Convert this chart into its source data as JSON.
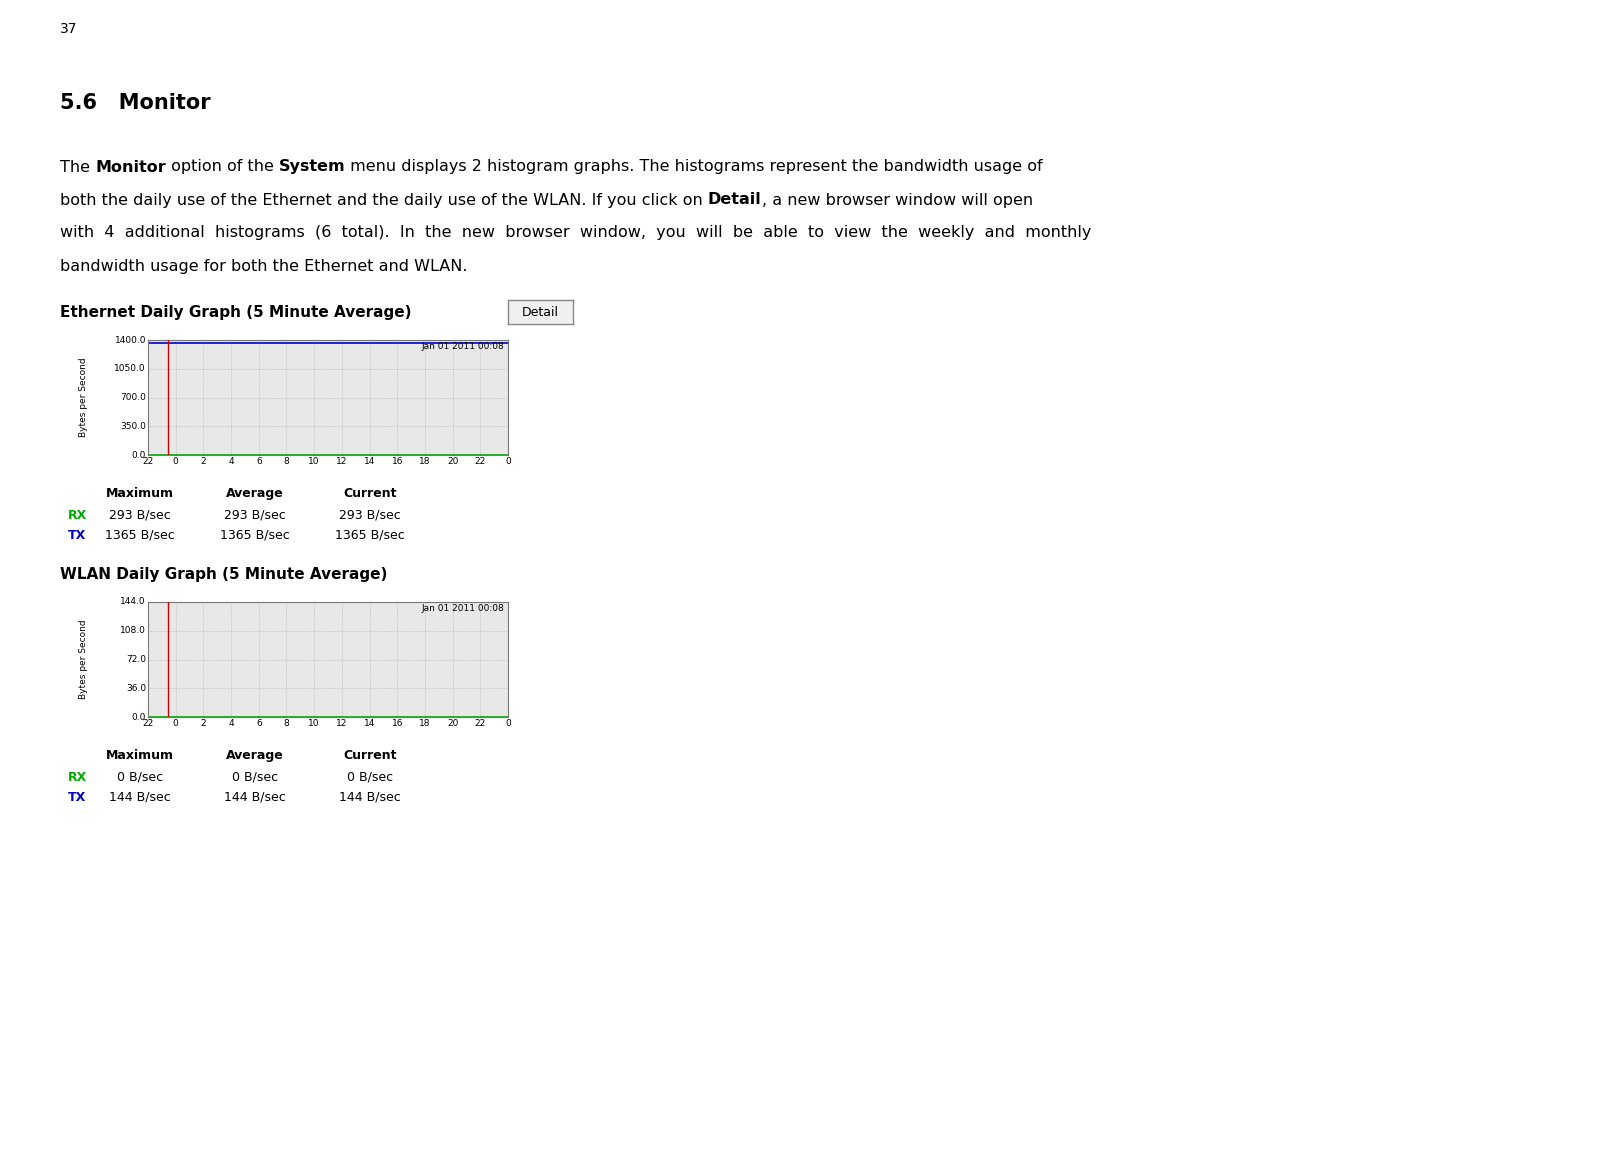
{
  "page_number": "37",
  "section_title": "5.6   Monitor",
  "eth_graph_title": "Ethernet Daily Graph (5 Minute Average)",
  "wlan_graph_title": "WLAN Daily Graph (5 Minute Average)",
  "detail_button": "Detail",
  "graph_timestamp": "Jan 01 2011 00:08",
  "graph_ylabel": "Bytes per Second",
  "graph_xlabel_ticks": [
    "22",
    "0",
    "2",
    "4",
    "6",
    "8",
    "10",
    "12",
    "14",
    "16",
    "18",
    "20",
    "22",
    "0"
  ],
  "eth_yticks": [
    "1400.0",
    "1050.0",
    "700.0",
    "350.0",
    "0.0"
  ],
  "wlan_yticks": [
    "144.0",
    "108.0",
    "72.0",
    "36.0",
    "0.0"
  ],
  "eth_stats": {
    "headers": [
      "Maximum",
      "Average",
      "Current"
    ],
    "rx": [
      "293 B/sec",
      "293 B/sec",
      "293 B/sec"
    ],
    "tx": [
      "1365 B/sec",
      "1365 B/sec",
      "1365 B/sec"
    ],
    "rx_color": "#00aa00",
    "tx_color": "#0000cc"
  },
  "wlan_stats": {
    "headers": [
      "Maximum",
      "Average",
      "Current"
    ],
    "rx": [
      "0 B/sec",
      "0 B/sec",
      "0 B/sec"
    ],
    "tx": [
      "144 B/sec",
      "144 B/sec",
      "144 B/sec"
    ],
    "rx_color": "#00aa00",
    "tx_color": "#0000cc"
  },
  "graph_plot_bg": "#e8e8e8",
  "graph_border_bg": "#cccccc",
  "grid_color": "#999999",
  "rx_line_color": "#00aa00",
  "tx_line_color": "#cc0000",
  "red_vline_color": "#cc0000",
  "blue_hline_color": "#0000cc",
  "footer_bg": "#2a2a2a",
  "engenius_text_color": "#ffffff",
  "page_bg": "#ffffff",
  "body_lines": [
    [
      {
        "text": "The ",
        "bold": false
      },
      {
        "text": "Monitor",
        "bold": true
      },
      {
        "text": " option of the ",
        "bold": false
      },
      {
        "text": "System",
        "bold": true
      },
      {
        "text": " menu displays 2 histogram graphs. The histograms represent the bandwidth usage of",
        "bold": false
      }
    ],
    [
      {
        "text": "both the daily use of the Ethernet and the daily use of the WLAN. If you click on ",
        "bold": false
      },
      {
        "text": "Detail",
        "bold": true
      },
      {
        "text": ", a new browser window will open",
        "bold": false
      }
    ],
    [
      {
        "text": "with  4  additional  histograms  (6  total).  In  the  new  browser  window,  you  will  be  able  to  view  the  weekly  and  monthly",
        "bold": false
      }
    ],
    [
      {
        "text": "bandwidth usage for both the Ethernet and WLAN.",
        "bold": false
      }
    ]
  ]
}
